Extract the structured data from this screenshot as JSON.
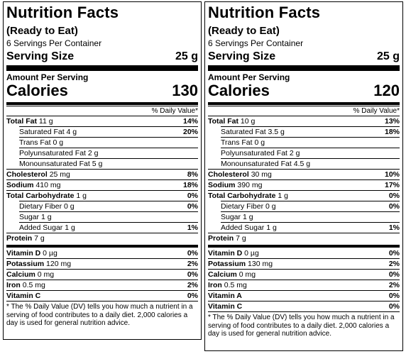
{
  "panels": [
    {
      "title": "Nutrition Facts",
      "subtitle": "(Ready to Eat)",
      "servings_per_container": "6 Servings Per Container",
      "serving_size_label": "Serving Size",
      "serving_size_value": "25 g",
      "amount_per_serving": "Amount Per Serving",
      "calories_label": "Calories",
      "calories_value": "130",
      "dv_header": "% Daily Value*",
      "nutrients": [
        {
          "name": "Total Fat",
          "amount": "11 g",
          "dv": "14%"
        },
        {
          "name": "Saturated Fat",
          "amount": "4 g",
          "dv": "20%"
        },
        {
          "name": "Trans Fat",
          "amount": "0 g",
          "dv": ""
        },
        {
          "name": "Polyunsaturated Fat",
          "amount": "2 g",
          "dv": ""
        },
        {
          "name": "Monounsaturated Fat",
          "amount": "5 g",
          "dv": ""
        },
        {
          "name": "Cholesterol",
          "amount": "25 mg",
          "dv": "8%"
        },
        {
          "name": "Sodium",
          "amount": "410 mg",
          "dv": "18%"
        },
        {
          "name": "Total Carbohydrate",
          "amount": "1 g",
          "dv": "0%"
        },
        {
          "name": "Dietary Fiber",
          "amount": "0 g",
          "dv": "0%"
        },
        {
          "name": "Sugar",
          "amount": "1 g",
          "dv": ""
        },
        {
          "name": "Added Sugar",
          "amount": "1 g",
          "dv": "1%"
        },
        {
          "name": "Protein",
          "amount": "7 g",
          "dv": ""
        }
      ],
      "vitamins": [
        {
          "name": "Vitamin D",
          "amount": "0 µg",
          "dv": "0%"
        },
        {
          "name": "Potassium",
          "amount": "120 mg",
          "dv": "2%"
        },
        {
          "name": "Calcium",
          "amount": "0 mg",
          "dv": "0%"
        },
        {
          "name": "Iron",
          "amount": "0.5 mg",
          "dv": "2%"
        },
        {
          "name": "Vitamin C",
          "amount": "",
          "dv": "0%"
        }
      ],
      "footnote": "* The % Daily Value (DV) tells you how much a nutrient in a serving of food contributes to a daily diet. 2,000 calories a day is used for general nutrition advice."
    },
    {
      "title": "Nutrition Facts",
      "subtitle": "(Ready to Eat)",
      "servings_per_container": "6 Servings Per Container",
      "serving_size_label": "Serving Size",
      "serving_size_value": "25 g",
      "amount_per_serving": "Amount Per Serving",
      "calories_label": "Calories",
      "calories_value": "120",
      "dv_header": "% Daily Value*",
      "nutrients": [
        {
          "name": "Total Fat",
          "amount": "10 g",
          "dv": "13%"
        },
        {
          "name": "Saturated Fat",
          "amount": "3.5 g",
          "dv": "18%"
        },
        {
          "name": "Trans Fat",
          "amount": "0 g",
          "dv": ""
        },
        {
          "name": "Polyunsaturated Fat",
          "amount": "2 g",
          "dv": ""
        },
        {
          "name": "Monounsaturated Fat",
          "amount": "4.5 g",
          "dv": ""
        },
        {
          "name": "Cholesterol",
          "amount": "30 mg",
          "dv": "10%"
        },
        {
          "name": "Sodium",
          "amount": "390 mg",
          "dv": "17%"
        },
        {
          "name": "Total Carbohydrate",
          "amount": "1 g",
          "dv": "0%"
        },
        {
          "name": "Dietary Fiber",
          "amount": "0 g",
          "dv": "0%"
        },
        {
          "name": "Sugar",
          "amount": "1 g",
          "dv": ""
        },
        {
          "name": "Added Sugar",
          "amount": "1 g",
          "dv": "1%"
        },
        {
          "name": "Protein",
          "amount": "7 g",
          "dv": ""
        }
      ],
      "vitamins": [
        {
          "name": "Vitamin D",
          "amount": "0 µg",
          "dv": "0%"
        },
        {
          "name": "Potassium",
          "amount": "130 mg",
          "dv": "2%"
        },
        {
          "name": "Calcium",
          "amount": "0 mg",
          "dv": "0%"
        },
        {
          "name": "Iron",
          "amount": "0.5 mg",
          "dv": "2%"
        },
        {
          "name": "Vitamin A",
          "amount": "",
          "dv": "0%"
        },
        {
          "name": "Vitamin C",
          "amount": "",
          "dv": "0%"
        }
      ],
      "footnote": "* The % Daily Value (DV) tells you how much a nutrient in a serving of food contributes to a daily diet. 2,000 calories a day is used for general nutrition advice."
    }
  ]
}
